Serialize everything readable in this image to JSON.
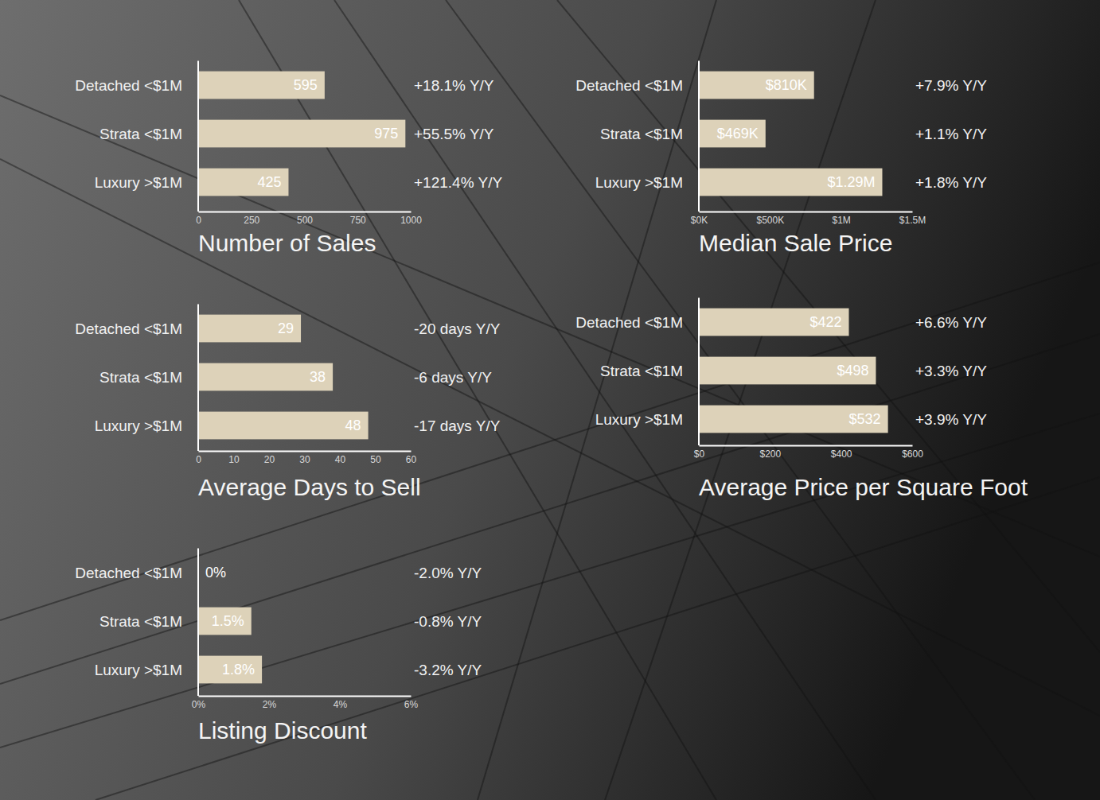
{
  "chart_data": [
    {
      "type": "bar",
      "orientation": "horizontal",
      "title": "Number of Sales",
      "categories": [
        "Detached <$1M",
        "Strata <$1M",
        "Luxury >$1M"
      ],
      "values": [
        595,
        975,
        425
      ],
      "data_labels": true,
      "color": "#ddd2b9",
      "xlim": [
        0,
        1000
      ],
      "xticks": [
        0,
        250,
        500,
        750,
        1000
      ],
      "annotations": [
        "+18.1% Y/Y",
        "+55.5% Y/Y",
        "+121.4% Y/Y"
      ]
    },
    {
      "type": "bar",
      "orientation": "horizontal",
      "title": "Median Sale Price",
      "categories": [
        "Detached <$1M",
        "Strata <$1M",
        "Luxury >$1M"
      ],
      "values": [
        810000,
        469000,
        1290000
      ],
      "value_labels": [
        "$810K",
        "$469K",
        "$1.29M"
      ],
      "data_labels": true,
      "color": "#ddd2b9",
      "xlim": [
        0,
        1500000
      ],
      "xticks": [
        {
          "value": 0,
          "label": "$0K"
        },
        {
          "value": 500000,
          "label": "$500K"
        },
        {
          "value": 1000000,
          "label": "$1M"
        },
        {
          "value": 1500000,
          "label": "$1.5M"
        }
      ],
      "annotations": [
        "+7.9% Y/Y",
        "+1.1% Y/Y",
        "+1.8% Y/Y"
      ]
    },
    {
      "type": "bar",
      "orientation": "horizontal",
      "title": "Average Days to Sell",
      "categories": [
        "Detached <$1M",
        "Strata <$1M",
        "Luxury >$1M"
      ],
      "values": [
        29,
        38,
        48
      ],
      "data_labels": true,
      "color": "#ddd2b9",
      "xlim": [
        0,
        60
      ],
      "xticks": [
        0,
        10,
        20,
        30,
        40,
        50,
        60
      ],
      "annotations": [
        "-20 days Y/Y",
        "-6 days Y/Y",
        "-17 days Y/Y"
      ]
    },
    {
      "type": "bar",
      "orientation": "horizontal",
      "title": "Average  Price per Square Foot",
      "categories": [
        "Detached <$1M",
        "Strata <$1M",
        "Luxury >$1M"
      ],
      "values": [
        422,
        498,
        532
      ],
      "value_labels": [
        "$422",
        "$498",
        "$532"
      ],
      "data_labels": true,
      "color": "#ddd2b9",
      "xlim": [
        0,
        600
      ],
      "xticks": [
        {
          "value": 0,
          "label": "$0"
        },
        {
          "value": 200,
          "label": "$200"
        },
        {
          "value": 400,
          "label": "$400"
        },
        {
          "value": 600,
          "label": "$600"
        }
      ],
      "annotations": [
        "+6.6% Y/Y",
        "+3.3% Y/Y",
        "+3.9% Y/Y"
      ]
    },
    {
      "type": "bar",
      "orientation": "horizontal",
      "title": "Listing Discount",
      "categories": [
        "Detached <$1M",
        "Strata <$1M",
        "Luxury >$1M"
      ],
      "values": [
        0,
        1.5,
        1.8
      ],
      "value_labels": [
        "0%",
        "1.5%",
        "1.8%"
      ],
      "data_labels": true,
      "color": "#ddd2b9",
      "xlim": [
        0,
        6
      ],
      "xticks": [
        {
          "value": 0,
          "label": "0%"
        },
        {
          "value": 2,
          "label": "2%"
        },
        {
          "value": 4,
          "label": "4%"
        },
        {
          "value": 6,
          "label": "6%"
        }
      ],
      "annotations": [
        "-2.0% Y/Y",
        "-0.8% Y/Y",
        "-3.2% Y/Y"
      ]
    }
  ]
}
